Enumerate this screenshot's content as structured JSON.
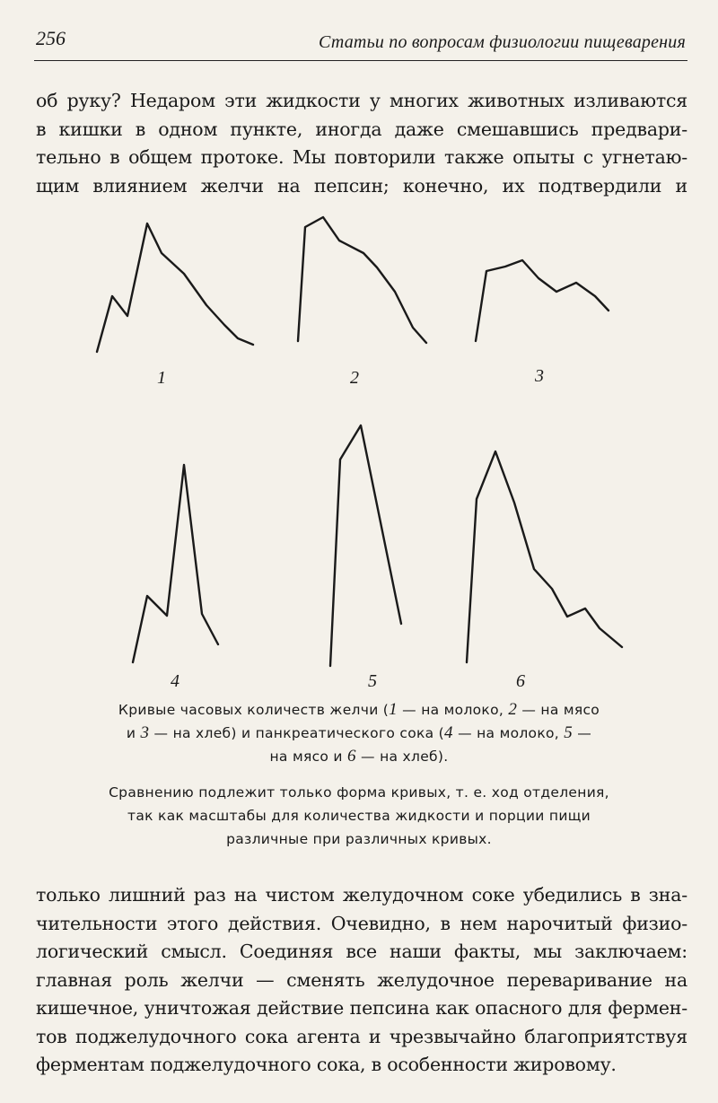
{
  "header": {
    "page_number": "256",
    "running_title": "Статьи по вопросам физиологии пищеварения"
  },
  "text_top": [
    "об руку? Недаром эти жидкости у многих животных изливаются",
    "в кишки в одном пункте, иногда даже смешавшись предвари-",
    "тельно в общем протоке. Мы повторили также опыты с угнетаю-",
    "щим влиянием желчи на пепсин; конечно, их подтвердили и"
  ],
  "figure": {
    "curve_labels": [
      "1",
      "2",
      "3",
      "4",
      "5",
      "6"
    ]
  },
  "caption": {
    "line1_a": "Кривые часовых количеств желчи (",
    "n1": "1",
    "line1_b": " — на молоко, ",
    "n2": "2",
    "line1_c": " — на мясо",
    "line2_a": "и ",
    "n3": "3",
    "line2_b": " — на хлеб) и панкреатического сока (",
    "n4": "4",
    "line2_c": " — на молоко, ",
    "n5": "5",
    "line2_d": " —",
    "line3_a": "на мясо и ",
    "n6": "6",
    "line3_b": " — на хлеб).",
    "note": [
      "Сравнению подлежит только форма кривых, т. е. ход отделения,",
      "так как масштабы для количества жидкости и порции пищи",
      "различные при различных кривых."
    ]
  },
  "text_bottom": [
    "только лишний раз на чистом желудочном соке убедились в зна-",
    "чительности этого действия. Очевидно, в нем нарочитый физио-",
    "логический смысл. Соединяя все наши факты, мы заключаем:",
    "главная роль желчи — сменять желудочное переваривание на",
    "кишечное, уничтожая действие пепсина как опасного для фермен-",
    "тов поджелудочного сока агента и чрезвычайно благоприятствуя",
    "ферментам поджелудочного сока, в особенности жировому."
  ]
}
